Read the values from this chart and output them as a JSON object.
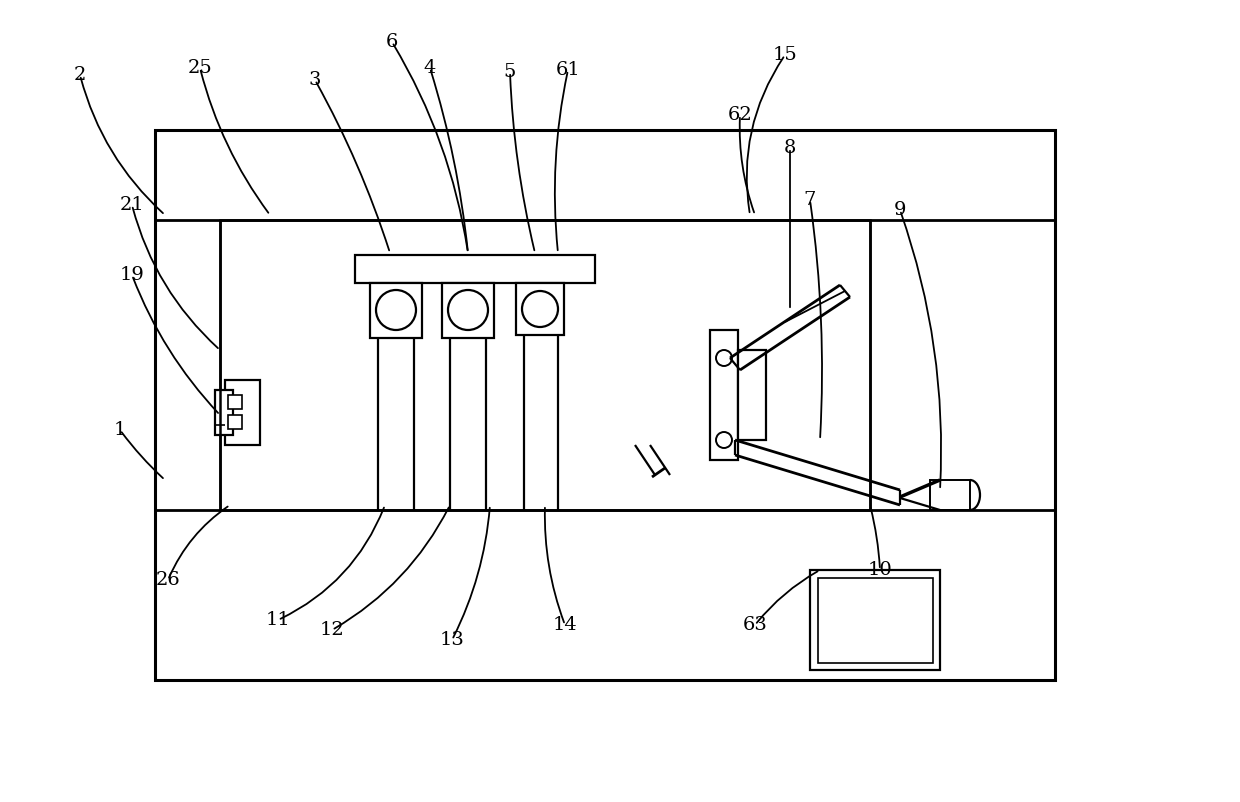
{
  "bg_color": "#ffffff",
  "line_color": "#000000",
  "lw": 1.6,
  "fig_width": 12.4,
  "fig_height": 8.02
}
